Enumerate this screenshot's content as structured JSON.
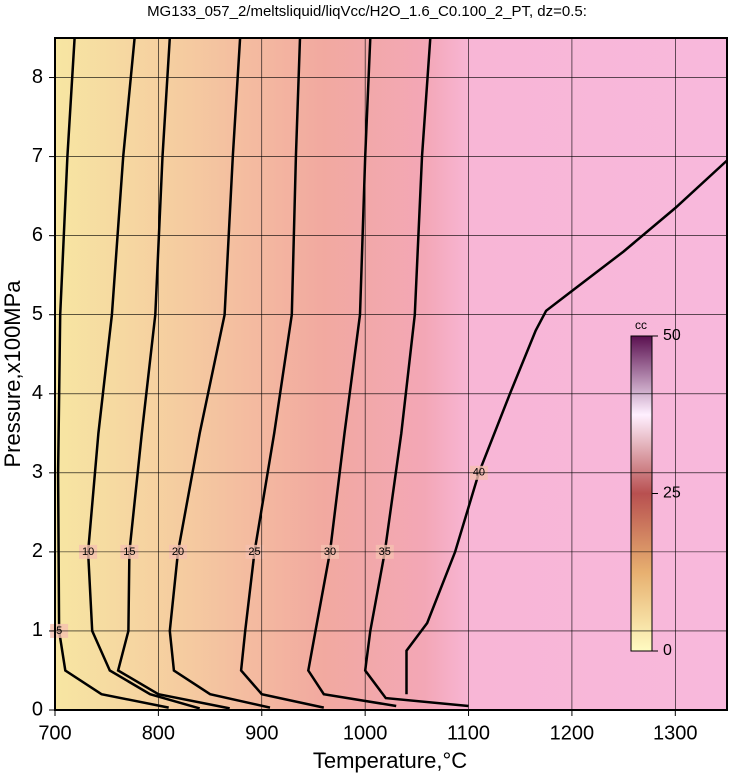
{
  "chart_data": {
    "type": "contour",
    "title": "MG133_057_2/meltsliquid/liqVcc/H2O_1.6_C0.100_2_PT, dz=0.5:",
    "x_label": "Temperature,°C",
    "y_label": "Pressure,x100MPa",
    "xlim": [
      700,
      1350
    ],
    "xticks": [
      700,
      800,
      900,
      1000,
      1100,
      1200,
      1300
    ],
    "ylim": [
      0,
      8.5
    ],
    "yticks": [
      0,
      1,
      2,
      3,
      4,
      5,
      6,
      7,
      8
    ],
    "grid": true,
    "line_color": "#000000",
    "colorbar": {
      "label": "cc",
      "clim": [
        0,
        50
      ],
      "cticks": [
        0,
        25,
        50
      ]
    },
    "contours": [
      {
        "level": 5,
        "x": [
          719,
          712,
          705,
          703,
          704,
          710,
          745,
          810
        ],
        "y": [
          8.5,
          7,
          5,
          3,
          1,
          0.5,
          0.2,
          0.03
        ]
      },
      {
        "level": 10,
        "x": [
          777,
          766,
          755,
          742,
          732,
          736,
          753,
          792,
          840
        ],
        "y": [
          8.5,
          7,
          5,
          3.5,
          2,
          1,
          0.5,
          0.2,
          0.02
        ]
      },
      {
        "level": 15,
        "x": [
          811,
          804,
          797,
          784,
          772,
          771,
          761,
          800,
          869
        ],
        "y": [
          8.5,
          7,
          5,
          3.5,
          2,
          1,
          0.5,
          0.2,
          0.02
        ]
      },
      {
        "level": 20,
        "x": [
          879,
          872,
          864,
          840,
          819,
          811,
          815,
          850,
          908
        ],
        "y": [
          8.5,
          7,
          5,
          3.5,
          2,
          1,
          0.5,
          0.2,
          0.03
        ]
      },
      {
        "level": 25,
        "x": [
          937,
          933,
          929,
          912,
          893,
          884,
          880,
          900,
          960
        ],
        "y": [
          8.5,
          7,
          5,
          3.5,
          2,
          1,
          0.5,
          0.2,
          0.03
        ]
      },
      {
        "level": 30,
        "x": [
          1005,
          1000,
          995,
          980,
          966,
          952,
          945,
          960,
          1030
        ],
        "y": [
          8.5,
          7,
          5,
          3.5,
          2,
          1,
          0.5,
          0.2,
          0.05
        ]
      },
      {
        "level": 35,
        "x": [
          1063,
          1055,
          1048,
          1035,
          1019,
          1005,
          1000,
          1020,
          1100
        ],
        "y": [
          8.5,
          7,
          5,
          3.5,
          2,
          1,
          0.5,
          0.15,
          0.05
        ]
      },
      {
        "level": 40,
        "x": [
          1040,
          1040,
          1060,
          1087,
          1110,
          1140,
          1165,
          1175,
          1200,
          1250,
          1300,
          1350
        ],
        "y": [
          0.2,
          0.75,
          1.1,
          2,
          3,
          4,
          4.8,
          5.05,
          5.3,
          5.8,
          6.35,
          6.95
        ]
      }
    ]
  }
}
